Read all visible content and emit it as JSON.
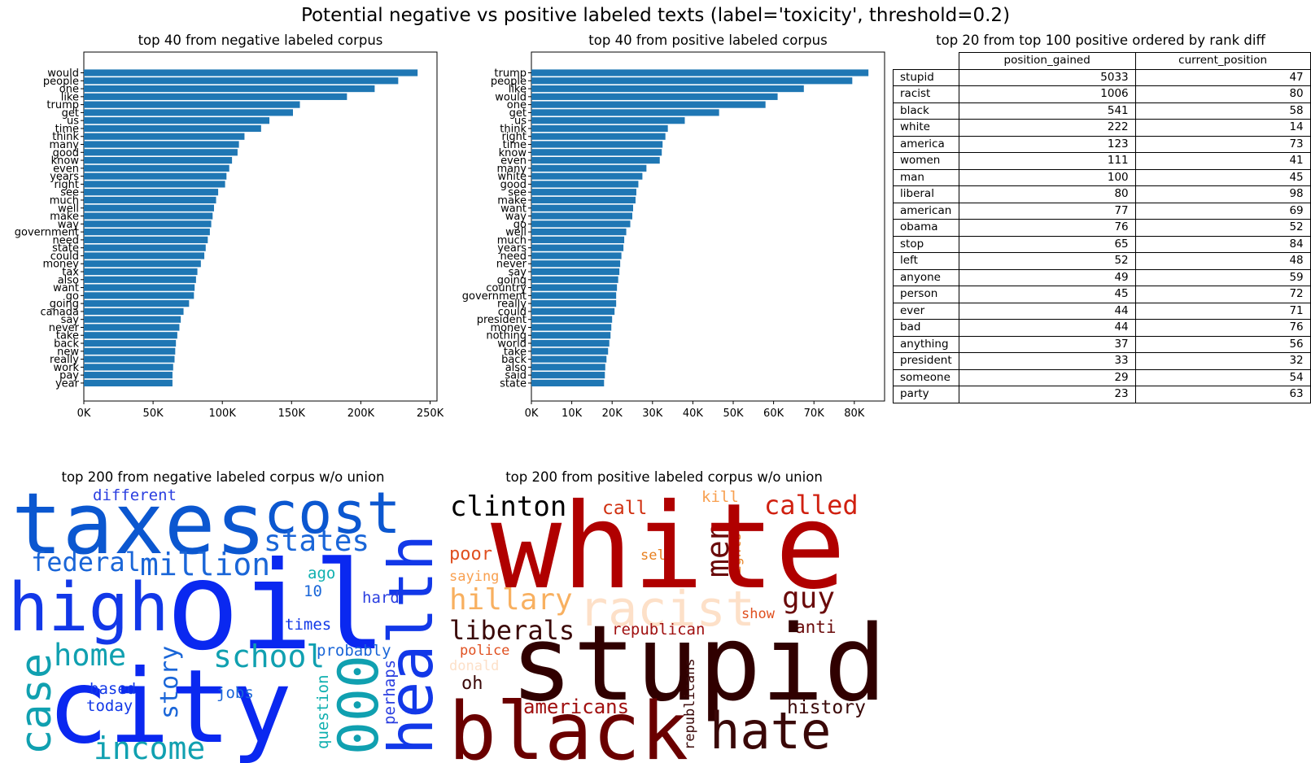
{
  "suptitle": "Potential negative vs positive labeled texts (label='toxicity', threshold=0.2)",
  "colors": {
    "bar": "#1f77b4",
    "axis": "#000000",
    "background": "#ffffff"
  },
  "chart_data": [
    {
      "type": "bar",
      "orientation": "horizontal",
      "title": "top 40 from negative labeled corpus",
      "xlabel": "",
      "ylabel": "",
      "xlim": [
        0,
        255000
      ],
      "xticks": [
        "0K",
        "50K",
        "100K",
        "150K",
        "200K",
        "250K"
      ],
      "categories": [
        "would",
        "people",
        "one",
        "like",
        "trump",
        "get",
        "us",
        "time",
        "think",
        "many",
        "good",
        "know",
        "even",
        "years",
        "right",
        "see",
        "much",
        "well",
        "make",
        "way",
        "government",
        "need",
        "state",
        "could",
        "money",
        "tax",
        "also",
        "want",
        "go",
        "going",
        "canada",
        "say",
        "never",
        "take",
        "back",
        "new",
        "really",
        "work",
        "pay",
        "year"
      ],
      "values": [
        241000,
        227000,
        210000,
        190000,
        156000,
        151000,
        134000,
        128000,
        116000,
        112000,
        111000,
        107000,
        105000,
        103000,
        102000,
        97000,
        95500,
        94000,
        93000,
        92000,
        91000,
        89500,
        88000,
        87000,
        84500,
        82000,
        81000,
        80000,
        79500,
        76000,
        72000,
        70000,
        69000,
        67500,
        66500,
        66000,
        65500,
        64500,
        64000,
        64000
      ]
    },
    {
      "type": "bar",
      "orientation": "horizontal",
      "title": "top 40 from positive labeled corpus",
      "xlabel": "",
      "ylabel": "",
      "xlim": [
        0,
        87500
      ],
      "xticks": [
        "0K",
        "10K",
        "20K",
        "30K",
        "40K",
        "50K",
        "60K",
        "70K",
        "80K"
      ],
      "categories": [
        "trump",
        "people",
        "like",
        "would",
        "one",
        "get",
        "us",
        "think",
        "right",
        "time",
        "know",
        "even",
        "many",
        "white",
        "good",
        "see",
        "make",
        "want",
        "way",
        "go",
        "well",
        "much",
        "years",
        "need",
        "never",
        "say",
        "going",
        "country",
        "government",
        "really",
        "could",
        "president",
        "money",
        "nothing",
        "world",
        "take",
        "back",
        "also",
        "said",
        "state"
      ],
      "values": [
        83500,
        79500,
        67500,
        61000,
        58000,
        46500,
        38000,
        33800,
        33200,
        32500,
        32300,
        31800,
        28500,
        27500,
        26500,
        26000,
        25800,
        25200,
        25000,
        24500,
        23500,
        23000,
        22800,
        22300,
        22000,
        21800,
        21500,
        21200,
        21000,
        21000,
        20600,
        20000,
        19800,
        19600,
        19300,
        19000,
        18600,
        18300,
        18200,
        18000
      ]
    },
    {
      "type": "table",
      "title": "top 20 from top 100 positive ordered by rank diff",
      "columns": [
        "position_gained",
        "current_position"
      ],
      "rows": [
        {
          "word": "stupid",
          "position_gained": "5033",
          "current_position": "47"
        },
        {
          "word": "racist",
          "position_gained": "1006",
          "current_position": "80"
        },
        {
          "word": "black",
          "position_gained": "541",
          "current_position": "58"
        },
        {
          "word": "white",
          "position_gained": "222",
          "current_position": "14"
        },
        {
          "word": "america",
          "position_gained": "123",
          "current_position": "73"
        },
        {
          "word": "women",
          "position_gained": "111",
          "current_position": "41"
        },
        {
          "word": "man",
          "position_gained": "100",
          "current_position": "45"
        },
        {
          "word": "liberal",
          "position_gained": "80",
          "current_position": "98"
        },
        {
          "word": "american",
          "position_gained": "77",
          "current_position": "69"
        },
        {
          "word": "obama",
          "position_gained": "76",
          "current_position": "52"
        },
        {
          "word": "stop",
          "position_gained": "65",
          "current_position": "84"
        },
        {
          "word": "left",
          "position_gained": "52",
          "current_position": "48"
        },
        {
          "word": "anyone",
          "position_gained": "49",
          "current_position": "59"
        },
        {
          "word": "person",
          "position_gained": "45",
          "current_position": "72"
        },
        {
          "word": "ever",
          "position_gained": "44",
          "current_position": "71"
        },
        {
          "word": "bad",
          "position_gained": "44",
          "current_position": "76"
        },
        {
          "word": "anything",
          "position_gained": "37",
          "current_position": "56"
        },
        {
          "word": "president",
          "position_gained": "33",
          "current_position": "32"
        },
        {
          "word": "someone",
          "position_gained": "29",
          "current_position": "54"
        },
        {
          "word": "party",
          "position_gained": "23",
          "current_position": "63"
        }
      ]
    }
  ],
  "wordclouds": {
    "negative": {
      "title": "top 200 from negative labeled corpus w/o union",
      "words": [
        "taxes",
        "cost",
        "different",
        "states",
        "federal",
        "million",
        "high",
        "oil",
        "health",
        "ago",
        "10",
        "hard",
        "case",
        "home",
        "times",
        "school",
        "probably",
        "city",
        "story",
        "000",
        "based",
        "today",
        "jobs",
        "question",
        "perhaps",
        "income"
      ]
    },
    "positive": {
      "title": "top 200 from positive labeled corpus w/o union",
      "words": [
        "clinton",
        "call",
        "kill",
        "called",
        "poor",
        "self",
        "men",
        "rights",
        "white",
        "saying",
        "hillary",
        "racist",
        "guy",
        "show",
        "liberals",
        "republican",
        "anti",
        "police",
        "donald",
        "oh",
        "stupid",
        "republicans",
        "history",
        "americans",
        "black",
        "hate"
      ]
    }
  }
}
